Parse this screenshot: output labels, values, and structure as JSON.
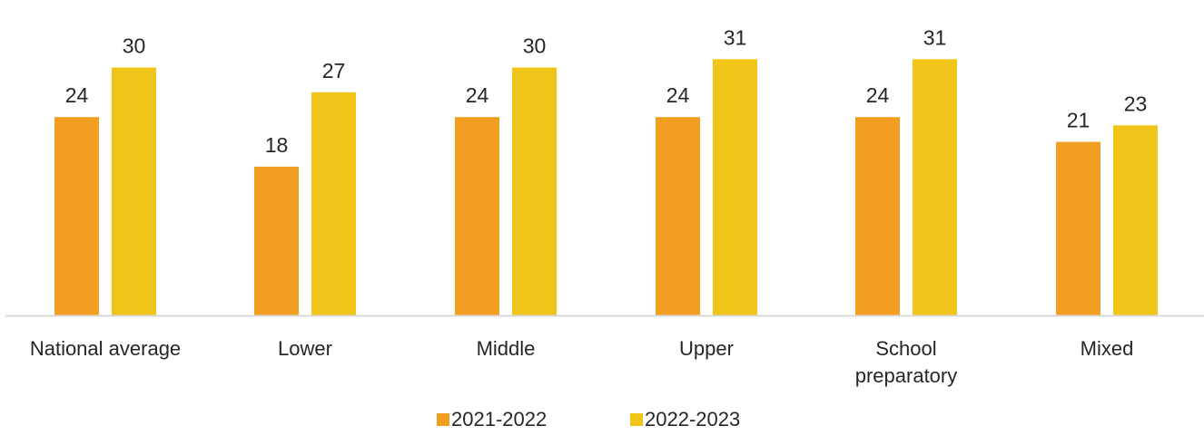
{
  "chart_data": {
    "type": "bar",
    "categories": [
      [
        "National average"
      ],
      [
        "Lower"
      ],
      [
        "Middle"
      ],
      [
        "Upper"
      ],
      [
        "School",
        "preparatory"
      ],
      [
        "Mixed"
      ]
    ],
    "series": [
      {
        "name": "2021-2022",
        "color": "#F29E21",
        "values": [
          24,
          18,
          24,
          24,
          24,
          21
        ]
      },
      {
        "name": "2022-2023",
        "color": "#F0C419",
        "values": [
          30,
          27,
          30,
          31,
          31,
          23
        ]
      }
    ],
    "ylim": [
      0,
      34
    ],
    "grid": false,
    "legend_position": "bottom-center",
    "axis_color": "#D9D9D9"
  }
}
